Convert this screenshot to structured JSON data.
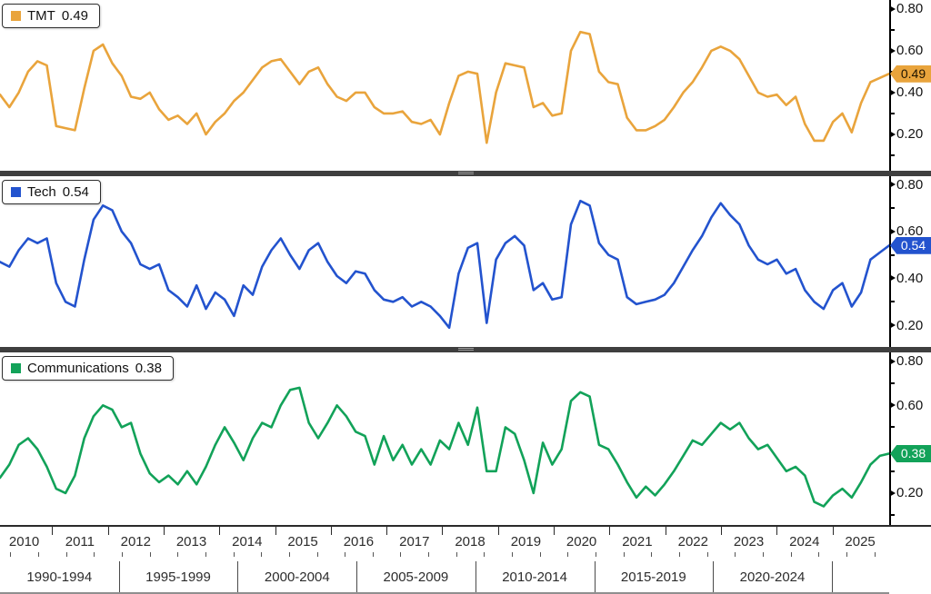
{
  "chart_data": [
    {
      "type": "line",
      "name": "TMT",
      "last_value": "0.49",
      "color": "#E9A43C",
      "badge_text_color": "#1d1300",
      "ylim": [
        0.026,
        0.843
      ],
      "ytick_labels": [
        "0.80",
        "0.60",
        "0.40",
        "0.20"
      ],
      "ytick_values": [
        0.8,
        0.6,
        0.4,
        0.2
      ],
      "minor_tick_values": [
        0.9,
        0.7,
        0.5,
        0.3,
        0.1
      ],
      "badge_value": 0.49,
      "x": {
        "start_year": 2010.0,
        "end_year": 2025.9,
        "points": 96
      },
      "values": [
        0.39,
        0.33,
        0.4,
        0.5,
        0.55,
        0.53,
        0.24,
        0.23,
        0.22,
        0.42,
        0.6,
        0.63,
        0.54,
        0.48,
        0.38,
        0.37,
        0.4,
        0.32,
        0.27,
        0.29,
        0.25,
        0.3,
        0.2,
        0.26,
        0.3,
        0.36,
        0.4,
        0.46,
        0.52,
        0.55,
        0.56,
        0.5,
        0.44,
        0.5,
        0.52,
        0.44,
        0.38,
        0.36,
        0.4,
        0.4,
        0.33,
        0.3,
        0.3,
        0.31,
        0.26,
        0.25,
        0.27,
        0.2,
        0.35,
        0.48,
        0.5,
        0.49,
        0.16,
        0.4,
        0.54,
        0.53,
        0.52,
        0.33,
        0.35,
        0.29,
        0.3,
        0.6,
        0.69,
        0.68,
        0.5,
        0.45,
        0.44,
        0.28,
        0.22,
        0.22,
        0.24,
        0.27,
        0.33,
        0.4,
        0.45,
        0.52,
        0.6,
        0.62,
        0.6,
        0.56,
        0.48,
        0.4,
        0.38,
        0.39,
        0.34,
        0.38,
        0.25,
        0.17,
        0.17,
        0.26,
        0.3,
        0.21,
        0.35,
        0.45,
        0.47,
        0.49
      ]
    },
    {
      "type": "line",
      "name": "Tech",
      "last_value": "0.54",
      "color": "#2353CE",
      "badge_text_color": "#ffffff",
      "ylim": [
        0.108,
        0.835
      ],
      "ytick_labels": [
        "0.80",
        "0.60",
        "0.40",
        "0.20"
      ],
      "ytick_values": [
        0.8,
        0.6,
        0.4,
        0.2
      ],
      "minor_tick_values": [
        0.9,
        0.7,
        0.5,
        0.3,
        0.1
      ],
      "badge_value": 0.54,
      "x": {
        "start_year": 2010.0,
        "end_year": 2025.9,
        "points": 96
      },
      "values": [
        0.47,
        0.45,
        0.52,
        0.57,
        0.55,
        0.57,
        0.38,
        0.3,
        0.28,
        0.48,
        0.65,
        0.71,
        0.69,
        0.6,
        0.55,
        0.46,
        0.44,
        0.46,
        0.35,
        0.32,
        0.28,
        0.37,
        0.27,
        0.34,
        0.31,
        0.24,
        0.37,
        0.33,
        0.45,
        0.52,
        0.57,
        0.5,
        0.44,
        0.52,
        0.55,
        0.47,
        0.41,
        0.38,
        0.43,
        0.42,
        0.35,
        0.31,
        0.3,
        0.32,
        0.28,
        0.3,
        0.28,
        0.24,
        0.19,
        0.42,
        0.53,
        0.55,
        0.21,
        0.48,
        0.55,
        0.58,
        0.54,
        0.35,
        0.38,
        0.31,
        0.32,
        0.63,
        0.73,
        0.71,
        0.55,
        0.5,
        0.48,
        0.32,
        0.29,
        0.3,
        0.31,
        0.33,
        0.38,
        0.45,
        0.52,
        0.58,
        0.66,
        0.72,
        0.67,
        0.63,
        0.54,
        0.48,
        0.46,
        0.48,
        0.42,
        0.44,
        0.35,
        0.3,
        0.27,
        0.35,
        0.38,
        0.28,
        0.34,
        0.48,
        0.51,
        0.54
      ]
    },
    {
      "type": "line",
      "name": "Communications",
      "last_value": "0.38",
      "color": "#12A259",
      "badge_text_color": "#ffffff",
      "ylim": [
        0.055,
        0.841
      ],
      "ytick_labels": [
        "0.80",
        "0.60",
        "0.20"
      ],
      "ytick_values": [
        0.8,
        0.6,
        0.2
      ],
      "minor_tick_values": [
        0.9,
        0.7,
        0.5,
        0.3,
        0.1
      ],
      "badge_value": 0.38,
      "x": {
        "start_year": 2010.0,
        "end_year": 2025.9,
        "points": 96
      },
      "values": [
        0.27,
        0.33,
        0.42,
        0.45,
        0.4,
        0.32,
        0.22,
        0.2,
        0.28,
        0.45,
        0.55,
        0.6,
        0.58,
        0.5,
        0.52,
        0.38,
        0.29,
        0.25,
        0.28,
        0.24,
        0.3,
        0.24,
        0.32,
        0.42,
        0.5,
        0.43,
        0.35,
        0.45,
        0.52,
        0.5,
        0.6,
        0.67,
        0.68,
        0.52,
        0.45,
        0.52,
        0.6,
        0.55,
        0.48,
        0.46,
        0.33,
        0.46,
        0.35,
        0.42,
        0.33,
        0.4,
        0.33,
        0.44,
        0.4,
        0.52,
        0.42,
        0.59,
        0.3,
        0.3,
        0.5,
        0.47,
        0.35,
        0.2,
        0.43,
        0.33,
        0.4,
        0.62,
        0.66,
        0.64,
        0.42,
        0.4,
        0.33,
        0.25,
        0.18,
        0.23,
        0.19,
        0.24,
        0.3,
        0.37,
        0.44,
        0.42,
        0.47,
        0.52,
        0.49,
        0.52,
        0.45,
        0.4,
        0.42,
        0.36,
        0.3,
        0.32,
        0.28,
        0.16,
        0.14,
        0.19,
        0.22,
        0.18,
        0.25,
        0.33,
        0.37,
        0.38
      ]
    }
  ],
  "x_axis": {
    "years": [
      "2010",
      "2011",
      "2012",
      "2013",
      "2014",
      "2015",
      "2016",
      "2017",
      "2018",
      "2019",
      "2020",
      "2021",
      "2022",
      "2023",
      "2024",
      "2025"
    ],
    "periods": [
      "1990-1994",
      "1995-1999",
      "2000-2004",
      "2005-2009",
      "2010-2014",
      "2015-2019",
      "2020-2024"
    ]
  },
  "ui": {
    "background": "#ffffff",
    "axis_color": "#000000",
    "divider_color": "#3f3f3f"
  }
}
